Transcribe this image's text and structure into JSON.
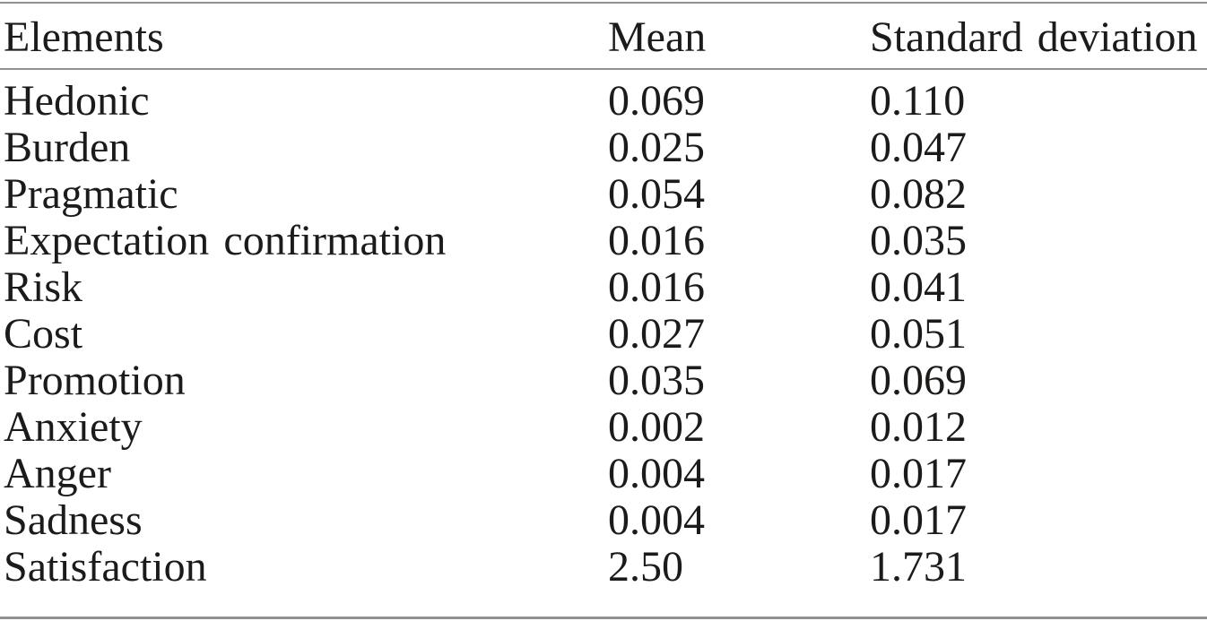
{
  "colors": {
    "background": "#ffffff",
    "text": "#1d1b1a",
    "rule": "#919191"
  },
  "table": {
    "columns": [
      {
        "key": "element",
        "label": "Elements"
      },
      {
        "key": "mean",
        "label": "Mean"
      },
      {
        "key": "sd",
        "label": "Standard deviation"
      }
    ],
    "rows": [
      {
        "element": "Hedonic",
        "mean": "0.069",
        "sd": "0.110"
      },
      {
        "element": "Burden",
        "mean": "0.025",
        "sd": "0.047"
      },
      {
        "element": "Pragmatic",
        "mean": "0.054",
        "sd": "0.082"
      },
      {
        "element": "Expectation confirmation",
        "mean": "0.016",
        "sd": "0.035"
      },
      {
        "element": "Risk",
        "mean": "0.016",
        "sd": "0.041"
      },
      {
        "element": "Cost",
        "mean": "0.027",
        "sd": "0.051"
      },
      {
        "element": "Promotion",
        "mean": "0.035",
        "sd": "0.069"
      },
      {
        "element": "Anxiety",
        "mean": "0.002",
        "sd": "0.012"
      },
      {
        "element": "Anger",
        "mean": "0.004",
        "sd": "0.017"
      },
      {
        "element": "Sadness",
        "mean": "0.004",
        "sd": "0.017"
      },
      {
        "element": "Satisfaction",
        "mean": "2.50",
        "sd": "1.731"
      }
    ]
  }
}
